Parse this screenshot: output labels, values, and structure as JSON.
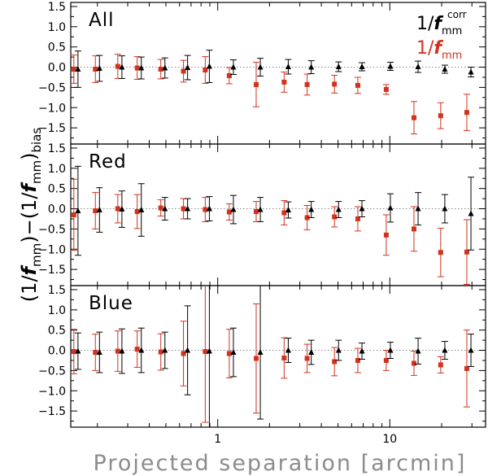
{
  "figure": {
    "ylabel_parts": [
      "(1/",
      "f",
      "mm",
      ")−(1/",
      "f",
      "mm",
      ")",
      "bias"
    ],
    "xlabel": "Projected separation [arcmin]",
    "x_tick_labels": [
      "1",
      "10"
    ],
    "y_tick_labels": [
      "1.5",
      "1.0",
      "0.5",
      "0.0",
      "−0.5",
      "−1.0",
      "−1.5"
    ],
    "legend": {
      "black": {
        "prefix": "1/",
        "f": "f",
        "sub": "mm",
        "sup": "corr"
      },
      "red": {
        "prefix": "1/",
        "f": "f",
        "sub": "mm"
      }
    },
    "colors": {
      "black": "#000000",
      "red": "#d2321e",
      "axes": "#000000",
      "zero_line": "#888888"
    }
  },
  "chart_data": [
    {
      "type": "scatter",
      "title": "All",
      "xscale": "log",
      "xlim": [
        0.14,
        36
      ],
      "ylim": [
        -1.9,
        1.6
      ],
      "grid": false,
      "legend_position": "top-right",
      "x": [
        0.15,
        0.2,
        0.27,
        0.35,
        0.48,
        0.65,
        0.87,
        1.2,
        1.72,
        2.5,
        3.4,
        4.9,
        6.7,
        9.8,
        14.2,
        20.3,
        28.8
      ],
      "series": [
        {
          "name": "1/f_mm^corr",
          "color": "black",
          "y": [
            -0.05,
            -0.03,
            0.0,
            -0.02,
            -0.02,
            -0.01,
            0.02,
            0.0,
            0.0,
            0.01,
            0.0,
            0.01,
            0.01,
            0.02,
            0.01,
            -0.05,
            -0.12
          ],
          "err": [
            0.45,
            0.32,
            0.28,
            0.27,
            0.25,
            0.3,
            0.4,
            0.18,
            0.22,
            0.18,
            0.16,
            0.12,
            0.1,
            0.1,
            0.14,
            0.1,
            0.12
          ]
        },
        {
          "name": "1/f_mm",
          "color": "red",
          "y": [
            -0.05,
            -0.05,
            0.02,
            -0.02,
            -0.05,
            -0.1,
            -0.07,
            -0.21,
            -0.43,
            -0.37,
            -0.43,
            -0.42,
            -0.45,
            -0.55,
            -1.25,
            -1.2,
            -1.12
          ],
          "err": [
            0.35,
            0.33,
            0.3,
            0.28,
            0.24,
            0.27,
            0.33,
            0.2,
            0.55,
            0.25,
            0.26,
            0.22,
            0.2,
            0.12,
            0.4,
            0.32,
            0.45
          ]
        }
      ]
    },
    {
      "type": "scatter",
      "title": "Red",
      "xscale": "log",
      "xlim": [
        0.14,
        36
      ],
      "ylim": [
        -1.9,
        1.6
      ],
      "grid": false,
      "x": [
        0.15,
        0.2,
        0.27,
        0.35,
        0.48,
        0.65,
        0.87,
        1.2,
        1.72,
        2.5,
        3.4,
        4.9,
        6.7,
        9.8,
        14.2,
        20.3,
        28.8
      ],
      "series": [
        {
          "name": "1/f_mm^corr",
          "color": "black",
          "y": [
            -0.05,
            -0.03,
            -0.01,
            -0.03,
            0.0,
            0.0,
            0.0,
            -0.02,
            -0.02,
            -0.03,
            -0.02,
            -0.02,
            0.0,
            0.02,
            0.0,
            0.0,
            -0.12
          ],
          "err": [
            1.1,
            0.55,
            0.45,
            0.65,
            0.28,
            0.25,
            0.3,
            0.35,
            0.3,
            0.2,
            0.2,
            0.2,
            0.2,
            0.35,
            0.4,
            0.35,
            0.9
          ]
        },
        {
          "name": "1/f_mm",
          "color": "red",
          "y": [
            -0.15,
            -0.05,
            0.0,
            -0.07,
            0.02,
            0.0,
            -0.02,
            -0.08,
            -0.07,
            -0.1,
            -0.22,
            -0.2,
            -0.25,
            -0.65,
            -0.5,
            -1.08,
            -1.07
          ]
        },
        {
          "name": "1/f_mm errors",
          "color": "red",
          "err": [
            0.88,
            0.45,
            0.35,
            0.42,
            0.2,
            0.25,
            0.3,
            0.2,
            0.25,
            0.3,
            0.3,
            0.25,
            0.3,
            0.5,
            0.55,
            0.6,
            0.8
          ]
        }
      ]
    },
    {
      "type": "scatter",
      "title": "Blue",
      "xscale": "log",
      "xlim": [
        0.14,
        36
      ],
      "ylim": [
        -1.9,
        1.6
      ],
      "grid": false,
      "x": [
        0.15,
        0.2,
        0.27,
        0.35,
        0.48,
        0.65,
        0.87,
        1.2,
        1.72,
        2.5,
        3.4,
        4.9,
        6.7,
        9.8,
        14.2,
        20.3,
        28.8
      ],
      "series": [
        {
          "name": "1/f_mm^corr",
          "color": "black",
          "y": [
            -0.02,
            -0.05,
            -0.02,
            0.0,
            0.0,
            0.0,
            -0.02,
            -0.05,
            -0.05,
            0.0,
            -0.05,
            0.0,
            -0.02,
            0.0,
            -0.02,
            0.0,
            0.0
          ],
          "err": [
            0.45,
            0.5,
            0.55,
            0.55,
            0.45,
            1.1,
            2.2,
            0.6,
            1.65,
            0.3,
            0.3,
            0.25,
            0.2,
            0.2,
            0.32,
            0.22,
            0.4
          ]
        },
        {
          "name": "1/f_mm",
          "color": "red",
          "y": [
            -0.03,
            -0.05,
            -0.02,
            0.03,
            -0.04,
            -0.08,
            -0.03,
            -0.08,
            -0.2,
            -0.19,
            -0.2,
            -0.28,
            -0.25,
            -0.25,
            -0.32,
            -0.36,
            -0.45
          ],
          "err": [
            0.55,
            0.45,
            0.5,
            0.45,
            0.45,
            0.8,
            1.75,
            0.6,
            1.35,
            0.5,
            0.35,
            0.35,
            0.3,
            0.25,
            0.3,
            0.2,
            0.95
          ]
        }
      ]
    }
  ]
}
